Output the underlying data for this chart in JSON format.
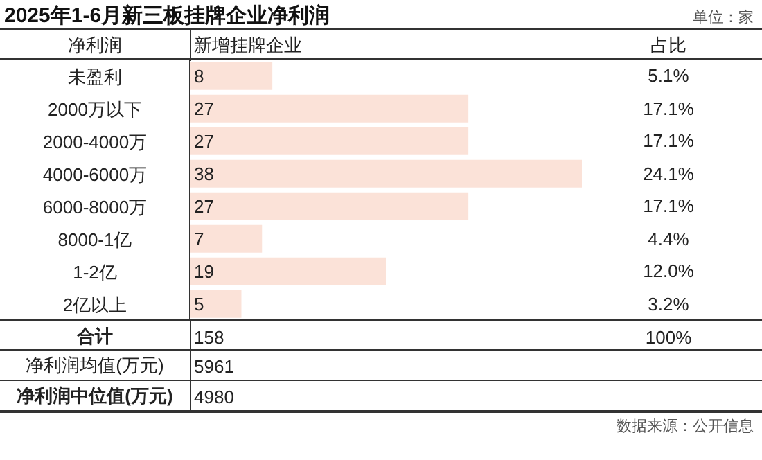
{
  "chart_data": {
    "type": "bar",
    "orientation": "horizontal",
    "title": "2025年1-6月新三板挂牌企业净利润",
    "ylabel": "净利润",
    "xlabel": "新增挂牌企业",
    "categories": [
      "未盈利",
      "2000万以下",
      "2000-4000万",
      "4000-6000万",
      "6000-8000万",
      "8000-1亿",
      "1-2亿",
      "2亿以上"
    ],
    "values": [
      8,
      27,
      27,
      38,
      27,
      7,
      19,
      5
    ],
    "color": "#fbe2d8",
    "data_labels": true,
    "annotations": [
      "占比",
      "5.1%",
      "17.1%",
      "17.1%",
      "24.1%",
      "17.1%",
      "4.4%",
      "12.0%",
      "3.2%",
      "合计",
      "158",
      "100%",
      "净利润均值(万元)",
      "5961",
      "净利润中位值(万元)",
      "4980",
      "单位：家",
      "数据来源：公开信息"
    ]
  }
}
